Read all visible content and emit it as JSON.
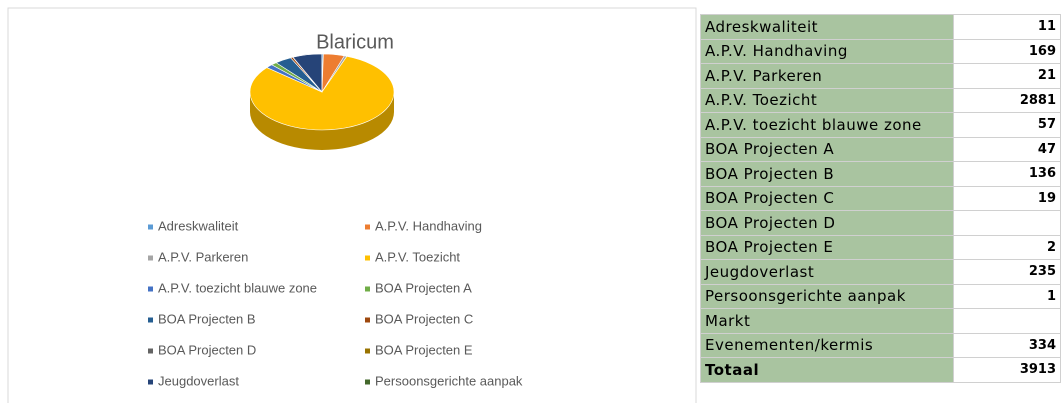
{
  "chart_data": {
    "type": "pie",
    "title": "Blaricum",
    "categories": [
      "Adreskwaliteit",
      "A.P.V. Handhaving",
      "A.P.V. Parkeren",
      "A.P.V. Toezicht",
      "A.P.V. toezicht blauwe zone",
      "BOA Projecten A",
      "BOA Projecten B",
      "BOA Projecten C",
      "BOA Projecten D",
      "BOA Projecten E",
      "Jeugdoverlast",
      "Persoonsgerichte aanpak"
    ],
    "values": [
      11,
      169,
      21,
      2881,
      57,
      47,
      136,
      19,
      null,
      2,
      235,
      1
    ],
    "colors": [
      "#5b9bd5",
      "#ed7d31",
      "#a5a5a5",
      "#ffc000",
      "#4472c4",
      "#70ad47",
      "#255e91",
      "#9e480e",
      "#636363",
      "#997300",
      "#264478",
      "#43682b"
    ],
    "legend": "bottom"
  },
  "table": {
    "rows": [
      [
        "Adreskwaliteit",
        "11"
      ],
      [
        "A.P.V. Handhaving",
        "169"
      ],
      [
        "A.P.V. Parkeren",
        "21"
      ],
      [
        "A.P.V. Toezicht",
        "2881"
      ],
      [
        "A.P.V. toezicht blauwe zone",
        "57"
      ],
      [
        "BOA Projecten A",
        "47"
      ],
      [
        "BOA Projecten B",
        "136"
      ],
      [
        "BOA Projecten C",
        "19"
      ],
      [
        "BOA Projecten D",
        ""
      ],
      [
        "BOA Projecten E",
        "2"
      ],
      [
        "Jeugdoverlast",
        "235"
      ],
      [
        "Persoonsgerichte aanpak",
        "1"
      ],
      [
        "Markt",
        ""
      ],
      [
        "Evenementen/kermis",
        "334"
      ],
      [
        "Totaal",
        "3913"
      ]
    ]
  }
}
